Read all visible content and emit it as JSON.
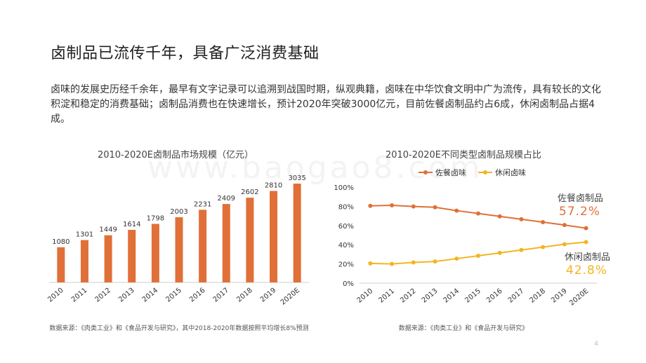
{
  "title": "卤制品已流传千年，具备广泛消费基础",
  "intro": "卤味的发展史历经千余年，最早有文字记录可以追溯到战国时期，纵观典籍，卤味在中华饮食文明中广为流传，具有较长的文化积淀和稳定的消费基础；卤制品消费也在快速增长，预计2020年突破3000亿元，目前佐餐卤制品约占6成，休闲卤制品占据4成。",
  "watermark": "www.baogao8.com",
  "page_number": "4",
  "colors": {
    "orange": "#E07038",
    "yellow": "#F2B620",
    "axis": "#cccccc"
  },
  "left_source": "数据来源：《肉类工业》和《食品开发与研究》，其中2018-2020年数据按照平均增长8%预测",
  "right_source": "数据来源：《肉类工业》和《食品开发与研究》",
  "chart_data": [
    {
      "type": "bar",
      "title": "2010-2020E卤制品市场规模（亿元）",
      "categories": [
        "2010",
        "2011",
        "2012",
        "2013",
        "2014",
        "2015",
        "2016",
        "2017",
        "2018",
        "2019",
        "2020E"
      ],
      "values": [
        1080,
        1301,
        1449,
        1614,
        1798,
        2003,
        2231,
        2409,
        2602,
        2810,
        3035
      ],
      "ylim": [
        0,
        3100
      ],
      "color": "#E07038"
    },
    {
      "type": "line",
      "title": "2010-2020E不同类型卤制品规模占比",
      "categories": [
        "2010",
        "2011",
        "2012",
        "2013",
        "2014",
        "2015",
        "2016",
        "2017",
        "2018",
        "2019",
        "2020E"
      ],
      "yticks": [
        "0%",
        "20%",
        "40%",
        "60%",
        "80%",
        "100%"
      ],
      "ylim": [
        0,
        100
      ],
      "legend": "top",
      "series": [
        {
          "name": "佐餐卤味",
          "color": "#E07038",
          "values": [
            80.5,
            81.0,
            79.8,
            79.0,
            75.5,
            72.5,
            69.5,
            66.5,
            63.5,
            60.5,
            57.2
          ]
        },
        {
          "name": "休闲卤味",
          "color": "#F2B620",
          "values": [
            20.5,
            20.0,
            21.5,
            22.5,
            25.5,
            28.5,
            31.5,
            34.5,
            37.5,
            40.5,
            42.8
          ]
        }
      ],
      "annotations": [
        {
          "label": "佐餐卤制品",
          "value": "57.2%",
          "color": "#E07038"
        },
        {
          "label": "休闲卤制品",
          "value": "42.8%",
          "color": "#F2B620"
        }
      ]
    }
  ]
}
